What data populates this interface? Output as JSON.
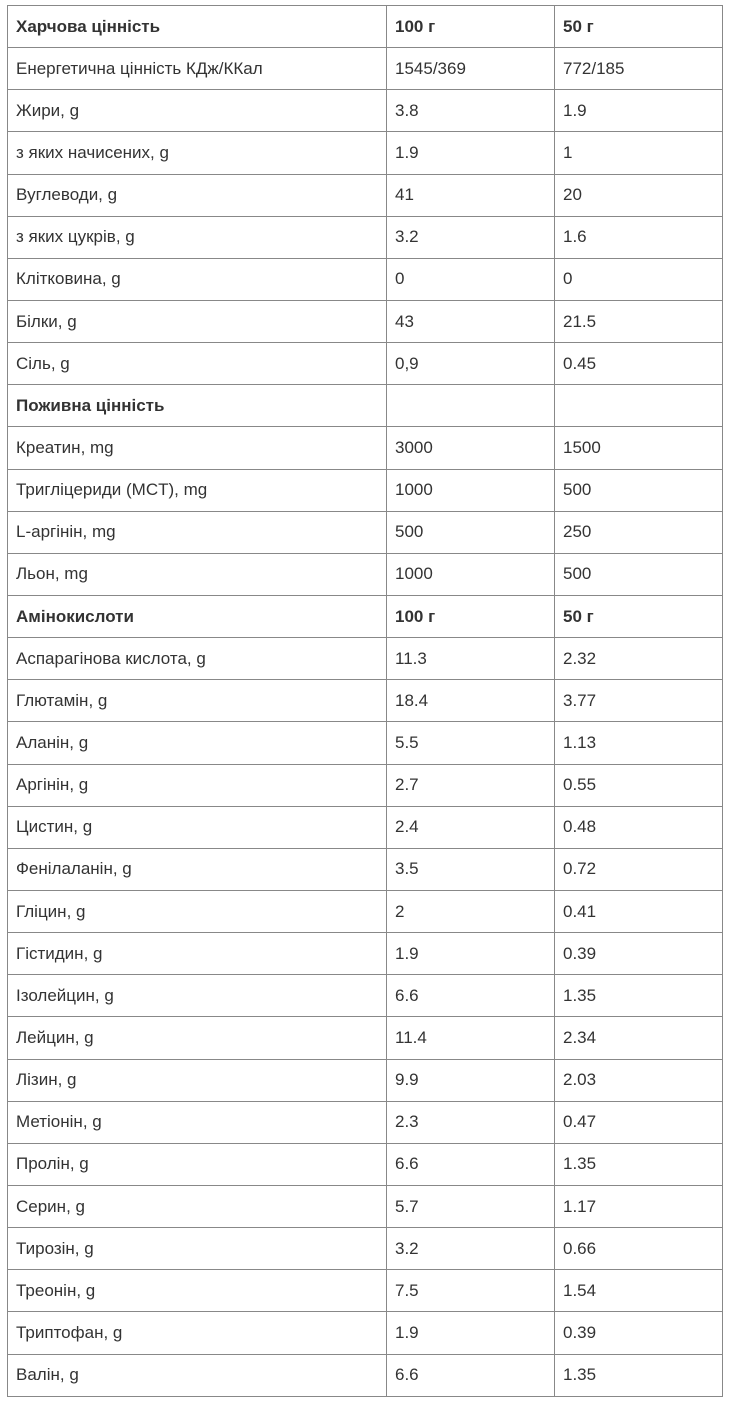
{
  "table": {
    "rows": [
      {
        "cells": [
          "Харчова цінність",
          "100 г",
          "50 г"
        ],
        "bold": true
      },
      {
        "cells": [
          "Енергетична цінність КДж/ККал",
          "1545/369",
          "772/185"
        ]
      },
      {
        "cells": [
          "Жири, g",
          "3.8",
          "1.9"
        ]
      },
      {
        "cells": [
          "з яких начисених, g",
          "1.9",
          "1"
        ]
      },
      {
        "cells": [
          "Вуглеводи, g",
          "41",
          "20"
        ]
      },
      {
        "cells": [
          "з яких цукрів, g",
          "3.2",
          "1.6"
        ]
      },
      {
        "cells": [
          "Клітковина, g",
          "0",
          "0"
        ]
      },
      {
        "cells": [
          "Білки, g",
          "43",
          "21.5"
        ]
      },
      {
        "cells": [
          "Сіль, g",
          "0,9",
          "0.45"
        ]
      },
      {
        "cells": [
          "Поживна цінність"
        ],
        "bold": true
      },
      {
        "cells": [
          "Креатин, mg",
          "3000",
          "1500"
        ]
      },
      {
        "cells": [
          "Тригліцериди (MCT), mg",
          "1000",
          "500"
        ]
      },
      {
        "cells": [
          "L-аргінін, mg",
          "500",
          "250"
        ]
      },
      {
        "cells": [
          "Льон, mg",
          "1000",
          "500"
        ]
      },
      {
        "cells": [
          "Амінокислоти",
          "100 г",
          "50 г"
        ],
        "bold": true
      },
      {
        "cells": [
          "Аспарагінова кислота, g",
          "11.3",
          "2.32"
        ]
      },
      {
        "cells": [
          "Глютамін, g",
          "18.4",
          "3.77"
        ]
      },
      {
        "cells": [
          "Аланін, g",
          "5.5",
          "1.13"
        ]
      },
      {
        "cells": [
          "Аргінін, g",
          "2.7",
          "0.55"
        ]
      },
      {
        "cells": [
          "Цистин, g",
          "2.4",
          "0.48"
        ]
      },
      {
        "cells": [
          "Фенілаланін, g",
          "3.5",
          "0.72"
        ]
      },
      {
        "cells": [
          "Гліцин, g",
          "2",
          "0.41"
        ]
      },
      {
        "cells": [
          "Гістидин, g",
          "1.9",
          "0.39"
        ]
      },
      {
        "cells": [
          "Ізолейцин, g",
          "6.6",
          "1.35"
        ]
      },
      {
        "cells": [
          "Лейцин, g",
          "11.4",
          "2.34"
        ]
      },
      {
        "cells": [
          "Лізин, g",
          "9.9",
          "2.03"
        ]
      },
      {
        "cells": [
          "Метіонін, g",
          "2.3",
          "0.47"
        ]
      },
      {
        "cells": [
          "Пролін, g",
          "6.6",
          "1.35"
        ]
      },
      {
        "cells": [
          "Серин, g",
          "5.7",
          "1.17"
        ]
      },
      {
        "cells": [
          "Тирозін, g",
          "3.2",
          "0.66"
        ]
      },
      {
        "cells": [
          "Треонін, g",
          "7.5",
          "1.54"
        ]
      },
      {
        "cells": [
          "Триптофан, g",
          "1.9",
          "0.39"
        ]
      },
      {
        "cells": [
          "Валін, g",
          "6.6",
          "1.35"
        ]
      }
    ]
  }
}
